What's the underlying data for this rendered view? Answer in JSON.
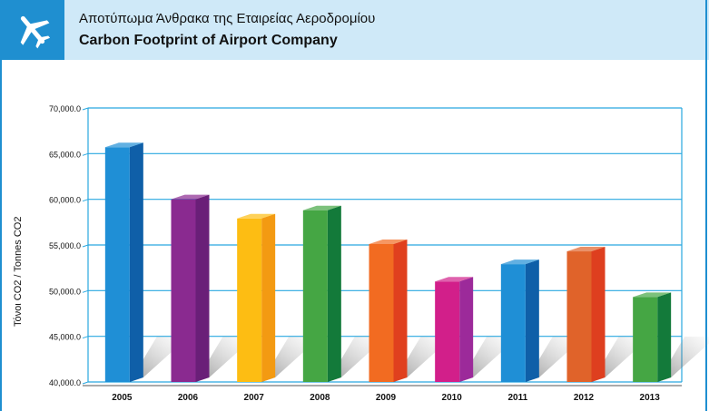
{
  "header": {
    "icon": "airplane-icon",
    "title_gr": "Αποτύπωμα Άνθρακα της Εταιρείας Αεροδρομίου",
    "title_en": "Carbon Footprint of Airport Company"
  },
  "colors": {
    "header_bg": "#cfe9f8",
    "accent": "#1f8fd0",
    "grid": "#29a8e0"
  },
  "chart_data": {
    "type": "bar",
    "title": "Carbon Footprint of Airport Company",
    "ylabel": "Τόνοι CO2 / Tonnes CO2",
    "xlabel": "",
    "ylim": [
      40000,
      70000
    ],
    "yticks": [
      "40,000.0",
      "45,000.0",
      "50,000.0",
      "55,000.0",
      "60,000.0",
      "65,000.0",
      "70,000.0"
    ],
    "ytick_values": [
      40000,
      45000,
      50000,
      55000,
      60000,
      65000,
      70000
    ],
    "categories": [
      "2005",
      "2006",
      "2007",
      "2008",
      "2009",
      "2010",
      "2011",
      "2012",
      "2013"
    ],
    "values": [
      65700,
      60000,
      57900,
      58800,
      55100,
      51000,
      52900,
      54300,
      49300
    ],
    "colors": [
      "#1f8fd6",
      "#8a2a90",
      "#fdbd13",
      "#45a644",
      "#f26b21",
      "#d21f8a",
      "#1f8fd6",
      "#e0632a",
      "#45a644"
    ],
    "side_colors": [
      "#0f5fa8",
      "#6a1f78",
      "#f39a12",
      "#137a3a",
      "#e0401e",
      "#9c2a9a",
      "#0f5fa8",
      "#de3f1f",
      "#137a3a"
    ],
    "grid": true,
    "legend": "none"
  }
}
